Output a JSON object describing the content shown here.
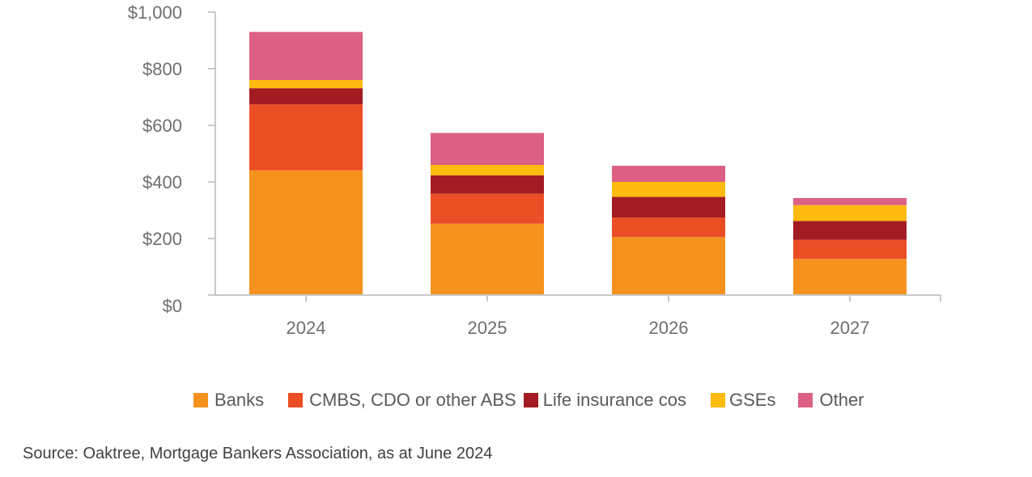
{
  "chart_data": {
    "type": "bar",
    "stacked": true,
    "title": "",
    "xlabel": "",
    "ylabel": "",
    "ylim": [
      0,
      1000
    ],
    "y_ticks": [
      0,
      200,
      400,
      600,
      800,
      1000
    ],
    "y_tick_labels": [
      "$0",
      "$200",
      "$400",
      "$600",
      "$800",
      "$1,000"
    ],
    "categories": [
      "2024",
      "2025",
      "2026",
      "2027"
    ],
    "series": [
      {
        "name": "Banks",
        "color": "#F5921E",
        "values": [
          441,
          252,
          205,
          128
        ]
      },
      {
        "name": "CMBS, CDO or other ABS",
        "color": "#EB4E24",
        "values": [
          233,
          106,
          69,
          67
        ]
      },
      {
        "name": "Life insurance cos",
        "color": "#A31C23",
        "values": [
          57,
          65,
          73,
          67
        ]
      },
      {
        "name": "GSEs",
        "color": "#FDBB0F",
        "values": [
          29,
          37,
          53,
          56
        ]
      },
      {
        "name": "Other",
        "color": "#DB6083",
        "values": [
          170,
          113,
          57,
          25
        ]
      }
    ],
    "grid": false,
    "legend_position": "bottom"
  },
  "source": "Source: Oaktree, Mortgage Bankers Association, as at June 2024"
}
